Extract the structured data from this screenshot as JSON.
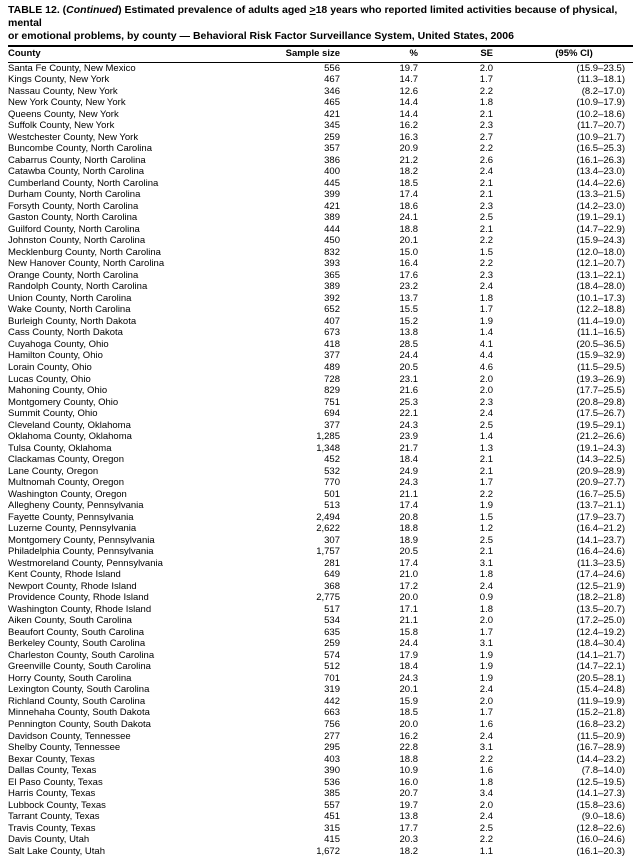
{
  "title_prefix": "TABLE 12. (",
  "title_cont": "Continued",
  "title_rest_line1": ") Estimated prevalence of adults aged ",
  "title_underline": ">",
  "title_rest_line1b": "18 years who reported limited activities because of physical, mental",
  "title_line2": "or emotional problems, by county — Behavioral Risk Factor Surveillance System, United States, 2006",
  "columns": {
    "county": "County",
    "sample": "Sample size",
    "pct": "%",
    "se": "SE",
    "ci": "(95% CI)"
  },
  "rows": [
    {
      "county": "Santa Fe County, New Mexico",
      "sample": "556",
      "pct": "19.7",
      "se": "2.0",
      "ci": "(15.9–23.5)"
    },
    {
      "county": "Kings County, New York",
      "sample": "467",
      "pct": "14.7",
      "se": "1.7",
      "ci": "(11.3–18.1)"
    },
    {
      "county": "Nassau County, New York",
      "sample": "346",
      "pct": "12.6",
      "se": "2.2",
      "ci": "(8.2–17.0)"
    },
    {
      "county": "New York County, New York",
      "sample": "465",
      "pct": "14.4",
      "se": "1.8",
      "ci": "(10.9–17.9)"
    },
    {
      "county": "Queens County, New York",
      "sample": "421",
      "pct": "14.4",
      "se": "2.1",
      "ci": "(10.2–18.6)"
    },
    {
      "county": "Suffolk County, New York",
      "sample": "345",
      "pct": "16.2",
      "se": "2.3",
      "ci": "(11.7–20.7)"
    },
    {
      "county": "Westchester County, New York",
      "sample": "259",
      "pct": "16.3",
      "se": "2.7",
      "ci": "(10.9–21.7)"
    },
    {
      "county": "Buncombe County, North Carolina",
      "sample": "357",
      "pct": "20.9",
      "se": "2.2",
      "ci": "(16.5–25.3)"
    },
    {
      "county": "Cabarrus County, North Carolina",
      "sample": "386",
      "pct": "21.2",
      "se": "2.6",
      "ci": "(16.1–26.3)"
    },
    {
      "county": "Catawba County, North Carolina",
      "sample": "400",
      "pct": "18.2",
      "se": "2.4",
      "ci": "(13.4–23.0)"
    },
    {
      "county": "Cumberland County, North Carolina",
      "sample": "445",
      "pct": "18.5",
      "se": "2.1",
      "ci": "(14.4–22.6)"
    },
    {
      "county": "Durham County, North Carolina",
      "sample": "399",
      "pct": "17.4",
      "se": "2.1",
      "ci": "(13.3–21.5)"
    },
    {
      "county": "Forsyth County, North Carolina",
      "sample": "421",
      "pct": "18.6",
      "se": "2.3",
      "ci": "(14.2–23.0)"
    },
    {
      "county": "Gaston County, North Carolina",
      "sample": "389",
      "pct": "24.1",
      "se": "2.5",
      "ci": "(19.1–29.1)"
    },
    {
      "county": "Guilford County, North Carolina",
      "sample": "444",
      "pct": "18.8",
      "se": "2.1",
      "ci": "(14.7–22.9)"
    },
    {
      "county": "Johnston County, North Carolina",
      "sample": "450",
      "pct": "20.1",
      "se": "2.2",
      "ci": "(15.9–24.3)"
    },
    {
      "county": "Mecklenburg County, North Carolina",
      "sample": "832",
      "pct": "15.0",
      "se": "1.5",
      "ci": "(12.0–18.0)"
    },
    {
      "county": "New Hanover County, North Carolina",
      "sample": "393",
      "pct": "16.4",
      "se": "2.2",
      "ci": "(12.1–20.7)"
    },
    {
      "county": "Orange County, North Carolina",
      "sample": "365",
      "pct": "17.6",
      "se": "2.3",
      "ci": "(13.1–22.1)"
    },
    {
      "county": "Randolph County, North Carolina",
      "sample": "389",
      "pct": "23.2",
      "se": "2.4",
      "ci": "(18.4–28.0)"
    },
    {
      "county": "Union County, North Carolina",
      "sample": "392",
      "pct": "13.7",
      "se": "1.8",
      "ci": "(10.1–17.3)"
    },
    {
      "county": "Wake County, North Carolina",
      "sample": "652",
      "pct": "15.5",
      "se": "1.7",
      "ci": "(12.2–18.8)"
    },
    {
      "county": "Burleigh County, North Dakota",
      "sample": "407",
      "pct": "15.2",
      "se": "1.9",
      "ci": "(11.4–19.0)"
    },
    {
      "county": "Cass County, North Dakota",
      "sample": "673",
      "pct": "13.8",
      "se": "1.4",
      "ci": "(11.1–16.5)"
    },
    {
      "county": "Cuyahoga County, Ohio",
      "sample": "418",
      "pct": "28.5",
      "se": "4.1",
      "ci": "(20.5–36.5)"
    },
    {
      "county": "Hamilton County, Ohio",
      "sample": "377",
      "pct": "24.4",
      "se": "4.4",
      "ci": "(15.9–32.9)"
    },
    {
      "county": "Lorain County, Ohio",
      "sample": "489",
      "pct": "20.5",
      "se": "4.6",
      "ci": "(11.5–29.5)"
    },
    {
      "county": "Lucas County, Ohio",
      "sample": "728",
      "pct": "23.1",
      "se": "2.0",
      "ci": "(19.3–26.9)"
    },
    {
      "county": "Mahoning County, Ohio",
      "sample": "829",
      "pct": "21.6",
      "se": "2.0",
      "ci": "(17.7–25.5)"
    },
    {
      "county": "Montgomery County, Ohio",
      "sample": "751",
      "pct": "25.3",
      "se": "2.3",
      "ci": "(20.8–29.8)"
    },
    {
      "county": "Summit County, Ohio",
      "sample": "694",
      "pct": "22.1",
      "se": "2.4",
      "ci": "(17.5–26.7)"
    },
    {
      "county": "Cleveland County, Oklahoma",
      "sample": "377",
      "pct": "24.3",
      "se": "2.5",
      "ci": "(19.5–29.1)"
    },
    {
      "county": "Oklahoma County, Oklahoma",
      "sample": "1,285",
      "pct": "23.9",
      "se": "1.4",
      "ci": "(21.2–26.6)"
    },
    {
      "county": "Tulsa County, Oklahoma",
      "sample": "1,348",
      "pct": "21.7",
      "se": "1.3",
      "ci": "(19.1–24.3)"
    },
    {
      "county": "Clackamas County, Oregon",
      "sample": "452",
      "pct": "18.4",
      "se": "2.1",
      "ci": "(14.3–22.5)"
    },
    {
      "county": "Lane County, Oregon",
      "sample": "532",
      "pct": "24.9",
      "se": "2.1",
      "ci": "(20.9–28.9)"
    },
    {
      "county": "Multnomah County, Oregon",
      "sample": "770",
      "pct": "24.3",
      "se": "1.7",
      "ci": "(20.9–27.7)"
    },
    {
      "county": "Washington County, Oregon",
      "sample": "501",
      "pct": "21.1",
      "se": "2.2",
      "ci": "(16.7–25.5)"
    },
    {
      "county": "Allegheny County, Pennsylvania",
      "sample": "513",
      "pct": "17.4",
      "se": "1.9",
      "ci": "(13.7–21.1)"
    },
    {
      "county": "Fayette County, Pennsylvania",
      "sample": "2,494",
      "pct": "20.8",
      "se": "1.5",
      "ci": "(17.9–23.7)"
    },
    {
      "county": "Luzerne County, Pennsylvania",
      "sample": "2,622",
      "pct": "18.8",
      "se": "1.2",
      "ci": "(16.4–21.2)"
    },
    {
      "county": "Montgomery County, Pennsylvania",
      "sample": "307",
      "pct": "18.9",
      "se": "2.5",
      "ci": "(14.1–23.7)"
    },
    {
      "county": "Philadelphia County, Pennsylvania",
      "sample": "1,757",
      "pct": "20.5",
      "se": "2.1",
      "ci": "(16.4–24.6)"
    },
    {
      "county": "Westmoreland County, Pennsylvania",
      "sample": "281",
      "pct": "17.4",
      "se": "3.1",
      "ci": "(11.3–23.5)"
    },
    {
      "county": "Kent County, Rhode Island",
      "sample": "649",
      "pct": "21.0",
      "se": "1.8",
      "ci": "(17.4–24.6)"
    },
    {
      "county": "Newport County, Rhode Island",
      "sample": "368",
      "pct": "17.2",
      "se": "2.4",
      "ci": "(12.5–21.9)"
    },
    {
      "county": "Providence County, Rhode Island",
      "sample": "2,775",
      "pct": "20.0",
      "se": "0.9",
      "ci": "(18.2–21.8)"
    },
    {
      "county": "Washington County, Rhode Island",
      "sample": "517",
      "pct": "17.1",
      "se": "1.8",
      "ci": "(13.5–20.7)"
    },
    {
      "county": "Aiken County, South Carolina",
      "sample": "534",
      "pct": "21.1",
      "se": "2.0",
      "ci": "(17.2–25.0)"
    },
    {
      "county": "Beaufort County, South Carolina",
      "sample": "635",
      "pct": "15.8",
      "se": "1.7",
      "ci": "(12.4–19.2)"
    },
    {
      "county": "Berkeley County, South Carolina",
      "sample": "259",
      "pct": "24.4",
      "se": "3.1",
      "ci": "(18.4–30.4)"
    },
    {
      "county": "Charleston County, South Carolina",
      "sample": "574",
      "pct": "17.9",
      "se": "1.9",
      "ci": "(14.1–21.7)"
    },
    {
      "county": "Greenville County, South Carolina",
      "sample": "512",
      "pct": "18.4",
      "se": "1.9",
      "ci": "(14.7–22.1)"
    },
    {
      "county": "Horry County, South Carolina",
      "sample": "701",
      "pct": "24.3",
      "se": "1.9",
      "ci": "(20.5–28.1)"
    },
    {
      "county": "Lexington County, South Carolina",
      "sample": "319",
      "pct": "20.1",
      "se": "2.4",
      "ci": "(15.4–24.8)"
    },
    {
      "county": "Richland County, South Carolina",
      "sample": "442",
      "pct": "15.9",
      "se": "2.0",
      "ci": "(11.9–19.9)"
    },
    {
      "county": "Minnehaha County, South Dakota",
      "sample": "663",
      "pct": "18.5",
      "se": "1.7",
      "ci": "(15.2–21.8)"
    },
    {
      "county": "Pennington County, South Dakota",
      "sample": "756",
      "pct": "20.0",
      "se": "1.6",
      "ci": "(16.8–23.2)"
    },
    {
      "county": "Davidson County, Tennessee",
      "sample": "277",
      "pct": "16.2",
      "se": "2.4",
      "ci": "(11.5–20.9)"
    },
    {
      "county": "Shelby County, Tennessee",
      "sample": "295",
      "pct": "22.8",
      "se": "3.1",
      "ci": "(16.7–28.9)"
    },
    {
      "county": "Bexar County, Texas",
      "sample": "403",
      "pct": "18.8",
      "se": "2.2",
      "ci": "(14.4–23.2)"
    },
    {
      "county": "Dallas County, Texas",
      "sample": "390",
      "pct": "10.9",
      "se": "1.6",
      "ci": "(7.8–14.0)"
    },
    {
      "county": "El Paso County, Texas",
      "sample": "536",
      "pct": "16.0",
      "se": "1.8",
      "ci": "(12.5–19.5)"
    },
    {
      "county": "Harris County, Texas",
      "sample": "385",
      "pct": "20.7",
      "se": "3.4",
      "ci": "(14.1–27.3)"
    },
    {
      "county": "Lubbock County, Texas",
      "sample": "557",
      "pct": "19.7",
      "se": "2.0",
      "ci": "(15.8–23.6)"
    },
    {
      "county": "Tarrant County, Texas",
      "sample": "451",
      "pct": "13.8",
      "se": "2.4",
      "ci": "(9.0–18.6)"
    },
    {
      "county": "Travis County, Texas",
      "sample": "315",
      "pct": "17.7",
      "se": "2.5",
      "ci": "(12.8–22.6)"
    },
    {
      "county": "Davis County, Utah",
      "sample": "415",
      "pct": "20.3",
      "se": "2.2",
      "ci": "(16.0–24.6)"
    },
    {
      "county": "Salt Lake County, Utah",
      "sample": "1,672",
      "pct": "18.2",
      "se": "1.1",
      "ci": "(16.1–20.3)"
    }
  ]
}
